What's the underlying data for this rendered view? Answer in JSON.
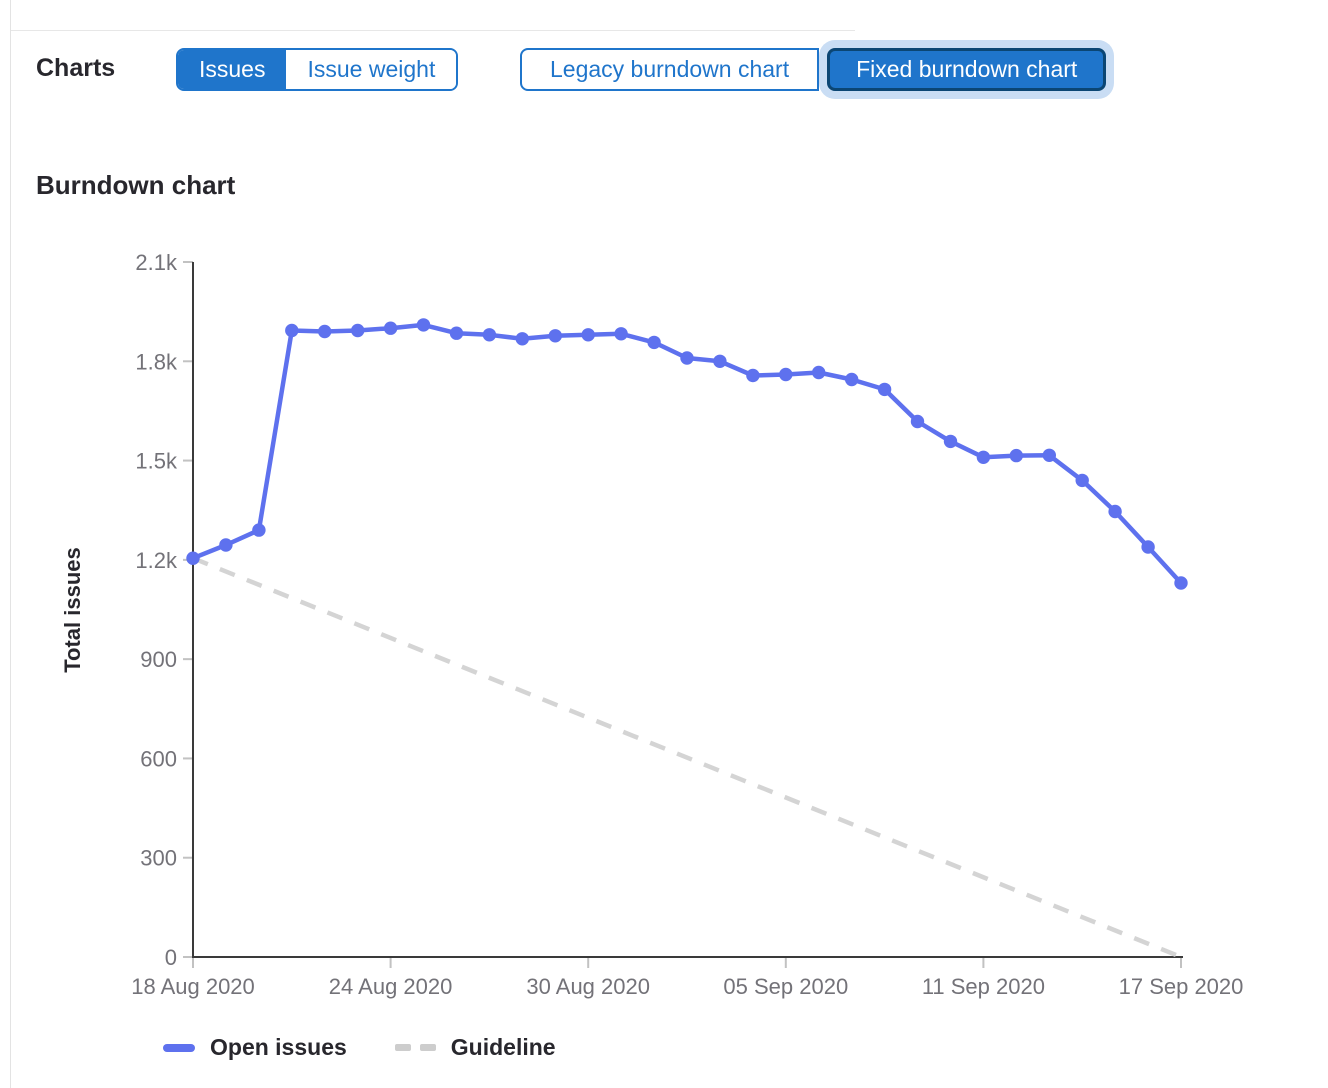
{
  "header": {
    "charts_label": "Charts",
    "issue_type_toggle": {
      "options": [
        {
          "label": "Issues",
          "selected": true
        },
        {
          "label": "Issue weight",
          "selected": false
        }
      ]
    },
    "chart_type_toggle": {
      "options": [
        {
          "label": "Legacy burndown chart",
          "selected": false
        },
        {
          "label": "Fixed burndown chart",
          "selected": true,
          "focused": true
        }
      ]
    }
  },
  "section": {
    "title": "Burndown chart"
  },
  "colors": {
    "accent_blue": "#1f75cb",
    "selected_button_border": "#0b4674",
    "focus_ring": "#c9ddf4",
    "series_blue": "#5e71ee",
    "guideline_gray": "#d4d4d4",
    "axis_line": "#3a3a3a",
    "tick_mark": "#c2c2c2",
    "tick_text": "#737278",
    "text_dark": "#28272d"
  },
  "chart_data": {
    "type": "line",
    "title": "Burndown chart",
    "xlabel": "",
    "ylabel": "Total issues",
    "ylim": [
      0,
      2100
    ],
    "y_tick_step": 300,
    "y_tick_labels": [
      "0",
      "300",
      "600",
      "900",
      "1.2k",
      "1.5k",
      "1.8k",
      "2.1k"
    ],
    "x_categories": [
      "18 Aug 2020",
      "19 Aug 2020",
      "20 Aug 2020",
      "21 Aug 2020",
      "22 Aug 2020",
      "23 Aug 2020",
      "24 Aug 2020",
      "25 Aug 2020",
      "26 Aug 2020",
      "27 Aug 2020",
      "28 Aug 2020",
      "29 Aug 2020",
      "30 Aug 2020",
      "31 Aug 2020",
      "01 Sep 2020",
      "02 Sep 2020",
      "03 Sep 2020",
      "04 Sep 2020",
      "05 Sep 2020",
      "06 Sep 2020",
      "07 Sep 2020",
      "08 Sep 2020",
      "09 Sep 2020",
      "10 Sep 2020",
      "11 Sep 2020",
      "12 Sep 2020",
      "13 Sep 2020",
      "14 Sep 2020",
      "15 Sep 2020",
      "16 Sep 2020",
      "17 Sep 2020"
    ],
    "x_tick_indices": [
      0,
      6,
      12,
      18,
      24,
      30
    ],
    "x_tick_labels": [
      "18 Aug 2020",
      "24 Aug 2020",
      "30 Aug 2020",
      "05 Sep 2020",
      "11 Sep 2020",
      "17 Sep 2020"
    ],
    "grid": false,
    "legend_position": "bottom",
    "series": [
      {
        "name": "Open issues",
        "color": "#5e71ee",
        "dashed": false,
        "markers": true,
        "values": [
          1205,
          1245,
          1290,
          1893,
          1890,
          1893,
          1900,
          1910,
          1885,
          1880,
          1868,
          1877,
          1880,
          1883,
          1857,
          1810,
          1800,
          1757,
          1760,
          1766,
          1745,
          1715,
          1618,
          1558,
          1510,
          1515,
          1516,
          1440,
          1346,
          1239,
          1130
        ]
      },
      {
        "name": "Guideline",
        "color": "#d4d4d4",
        "dashed": true,
        "markers": false,
        "x": [
          0,
          30
        ],
        "values": [
          1205,
          0
        ]
      }
    ]
  }
}
